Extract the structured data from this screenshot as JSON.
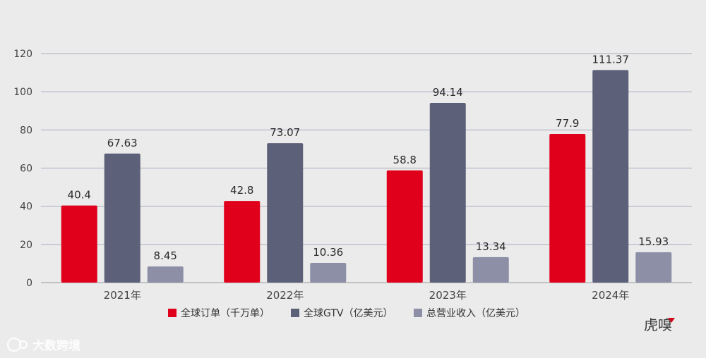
{
  "chart_data": {
    "type": "bar",
    "title": "",
    "xlabel": "",
    "ylabel": "",
    "categories": [
      "2021年",
      "2022年",
      "2023年",
      "2024年"
    ],
    "series": [
      {
        "name": "全球订单（千万单）",
        "color": "#e0001b",
        "values": [
          40.4,
          42.8,
          58.8,
          77.9
        ],
        "labels": [
          "40.4",
          "42.8",
          "58.8",
          "77.9"
        ]
      },
      {
        "name": "全球GTV（亿美元）",
        "color": "#5c6078",
        "values": [
          67.63,
          73.07,
          94.14,
          111.37
        ],
        "labels": [
          "67.63",
          "73.07",
          "94.14",
          "111.37"
        ]
      },
      {
        "name": "总营业收入（亿美元）",
        "color": "#8c8fa6",
        "values": [
          8.45,
          10.36,
          13.34,
          15.93
        ],
        "labels": [
          "8.45",
          "10.36",
          "13.34",
          "15.93"
        ]
      }
    ],
    "ylim": [
      0,
      120
    ],
    "yticks": [
      0,
      20,
      40,
      60,
      80,
      100,
      120
    ],
    "grid": true,
    "legend_position": "bottom-center"
  },
  "brand": {
    "logo_text": "虎嗅"
  },
  "watermark": {
    "text": "大数跨境"
  }
}
